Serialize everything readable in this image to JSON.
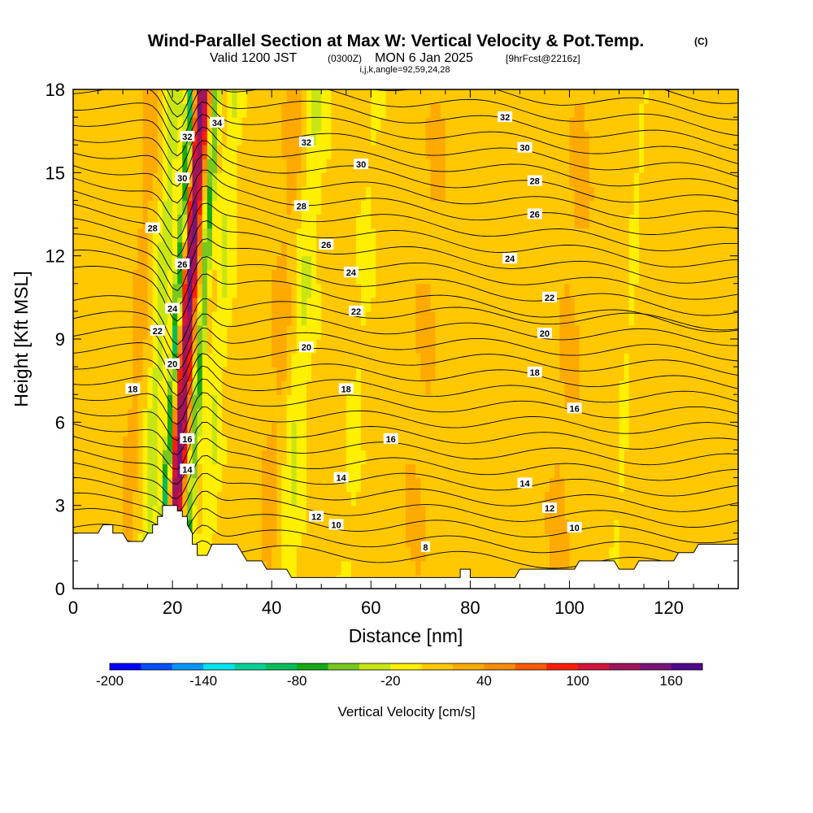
{
  "chart_data": {
    "type": "heatmap",
    "title": "Wind-Parallel Section at Max W: Vertical Velocity & Pot.Temp.",
    "title_mark": "(C)",
    "subtitle_main": "Valid 1200 JST",
    "subtitle_utc": "(0300Z)",
    "subtitle_date": "MON 6 Jan 2025",
    "subtitle_fcst": "[9hrFcst@2216z]",
    "subtitle_params": "i,j,k,angle=92,59,24,28",
    "xlabel": "Distance [nm]",
    "ylabel": "Height [Kft MSL]",
    "xlim": [
      0,
      134
    ],
    "ylim": [
      0,
      18
    ],
    "x_ticks": [
      "0",
      "20",
      "40",
      "60",
      "80",
      "100",
      "120"
    ],
    "y_ticks": [
      "0",
      "3",
      "6",
      "9",
      "12",
      "15",
      "18"
    ],
    "colorbar": {
      "label": "Vertical Velocity [cm/s]",
      "tick_labels": [
        "-200",
        "-140",
        "-80",
        "-20",
        "40",
        "100",
        "160"
      ],
      "colors": [
        "#0000ff",
        "#0050ff",
        "#0096ff",
        "#00e6f0",
        "#00d296",
        "#00be5a",
        "#14aa14",
        "#78c81e",
        "#c8e614",
        "#ffef00",
        "#ffc800",
        "#ffaa00",
        "#ff8c00",
        "#ff5a00",
        "#ff1e00",
        "#d2143c",
        "#a0145a",
        "#781478",
        "#500a8c"
      ]
    },
    "contour_variable": "Potential temperature",
    "contour_labels": [
      {
        "text": "34",
        "x": 29,
        "y": 16.8
      },
      {
        "text": "32",
        "x": 23,
        "y": 16.3
      },
      {
        "text": "32",
        "x": 47,
        "y": 16.1
      },
      {
        "text": "32",
        "x": 87,
        "y": 17.0
      },
      {
        "text": "30",
        "x": 22,
        "y": 14.8
      },
      {
        "text": "30",
        "x": 58,
        "y": 15.3
      },
      {
        "text": "30",
        "x": 91,
        "y": 15.9
      },
      {
        "text": "28",
        "x": 16,
        "y": 13.0
      },
      {
        "text": "28",
        "x": 46,
        "y": 13.8
      },
      {
        "text": "28",
        "x": 93,
        "y": 14.7
      },
      {
        "text": "26",
        "x": 22,
        "y": 11.7
      },
      {
        "text": "26",
        "x": 51,
        "y": 12.4
      },
      {
        "text": "26",
        "x": 93,
        "y": 13.5
      },
      {
        "text": "24",
        "x": 20,
        "y": 10.1
      },
      {
        "text": "24",
        "x": 56,
        "y": 11.4
      },
      {
        "text": "24",
        "x": 88,
        "y": 11.9
      },
      {
        "text": "22",
        "x": 17,
        "y": 9.3
      },
      {
        "text": "22",
        "x": 57,
        "y": 10.0
      },
      {
        "text": "22",
        "x": 96,
        "y": 10.5
      },
      {
        "text": "20",
        "x": 20,
        "y": 8.1
      },
      {
        "text": "20",
        "x": 47,
        "y": 8.7
      },
      {
        "text": "20",
        "x": 95,
        "y": 9.2
      },
      {
        "text": "18",
        "x": 12,
        "y": 7.2
      },
      {
        "text": "18",
        "x": 55,
        "y": 7.2
      },
      {
        "text": "18",
        "x": 93,
        "y": 7.8
      },
      {
        "text": "16",
        "x": 23,
        "y": 5.4
      },
      {
        "text": "16",
        "x": 64,
        "y": 5.4
      },
      {
        "text": "16",
        "x": 101,
        "y": 6.5
      },
      {
        "text": "14",
        "x": 23,
        "y": 4.3
      },
      {
        "text": "14",
        "x": 54,
        "y": 4.0
      },
      {
        "text": "14",
        "x": 91,
        "y": 3.8
      },
      {
        "text": "12",
        "x": 49,
        "y": 2.6
      },
      {
        "text": "12",
        "x": 96,
        "y": 2.9
      },
      {
        "text": "10",
        "x": 53,
        "y": 2.3
      },
      {
        "text": "10",
        "x": 101,
        "y": 2.2
      },
      {
        "text": "8",
        "x": 71,
        "y": 1.5
      }
    ],
    "terrain": [
      [
        0,
        2.0
      ],
      [
        5,
        2.0
      ],
      [
        6,
        2.3
      ],
      [
        8,
        2.3
      ],
      [
        8,
        2.0
      ],
      [
        10,
        2.0
      ],
      [
        11,
        1.7
      ],
      [
        14,
        1.7
      ],
      [
        15,
        2.0
      ],
      [
        16,
        2.0
      ],
      [
        16,
        2.3
      ],
      [
        17,
        2.3
      ],
      [
        17,
        2.6
      ],
      [
        18,
        2.6
      ],
      [
        18,
        3.0
      ],
      [
        21,
        3.0
      ],
      [
        21,
        2.8
      ],
      [
        22,
        2.8
      ],
      [
        22,
        2.6
      ],
      [
        23,
        2.6
      ],
      [
        23,
        2.3
      ],
      [
        24,
        2.0
      ],
      [
        24,
        1.6
      ],
      [
        25,
        1.6
      ],
      [
        25,
        1.2
      ],
      [
        27,
        1.2
      ],
      [
        28,
        1.6
      ],
      [
        33,
        1.6
      ],
      [
        34,
        1.3
      ],
      [
        35,
        1.0
      ],
      [
        38,
        1.0
      ],
      [
        39,
        0.7
      ],
      [
        43,
        0.7
      ],
      [
        44,
        0.4
      ],
      [
        78,
        0.4
      ],
      [
        78,
        0.7
      ],
      [
        80,
        0.7
      ],
      [
        80,
        0.4
      ],
      [
        89,
        0.4
      ],
      [
        90,
        0.7
      ],
      [
        101,
        0.7
      ],
      [
        102,
        1.0
      ],
      [
        109,
        1.0
      ],
      [
        110,
        0.7
      ],
      [
        113,
        0.7
      ],
      [
        114,
        1.0
      ],
      [
        121,
        1.0
      ],
      [
        122,
        1.3
      ],
      [
        125,
        1.3
      ],
      [
        126,
        1.6
      ],
      [
        134,
        1.6
      ]
    ]
  }
}
